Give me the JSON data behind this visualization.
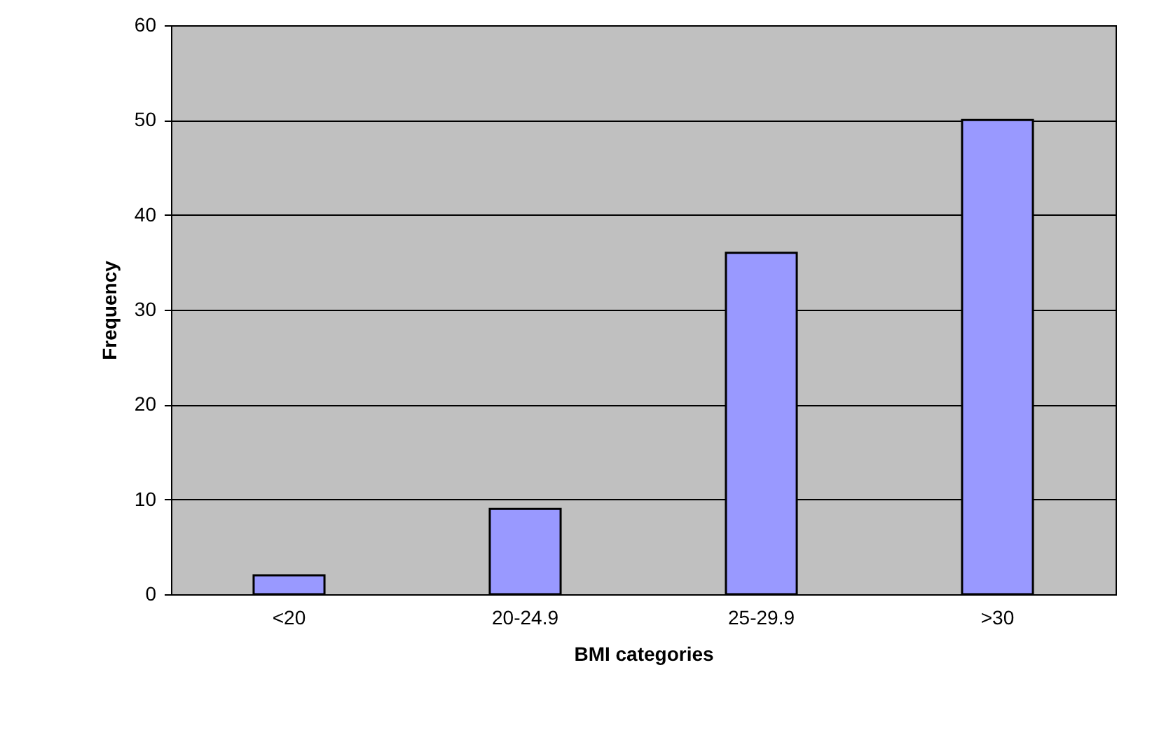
{
  "chart_data": {
    "type": "bar",
    "xlabel": "BMI categories",
    "ylabel": "Frequency",
    "categories": [
      "<20",
      "20-24.9",
      "25-29.9",
      ">30"
    ],
    "values": [
      2,
      9,
      36,
      50
    ],
    "color": "#9999ff",
    "ylim": [
      0,
      60
    ],
    "yticks": [
      0,
      10,
      20,
      30,
      40,
      50,
      60
    ],
    "grid": "y"
  }
}
